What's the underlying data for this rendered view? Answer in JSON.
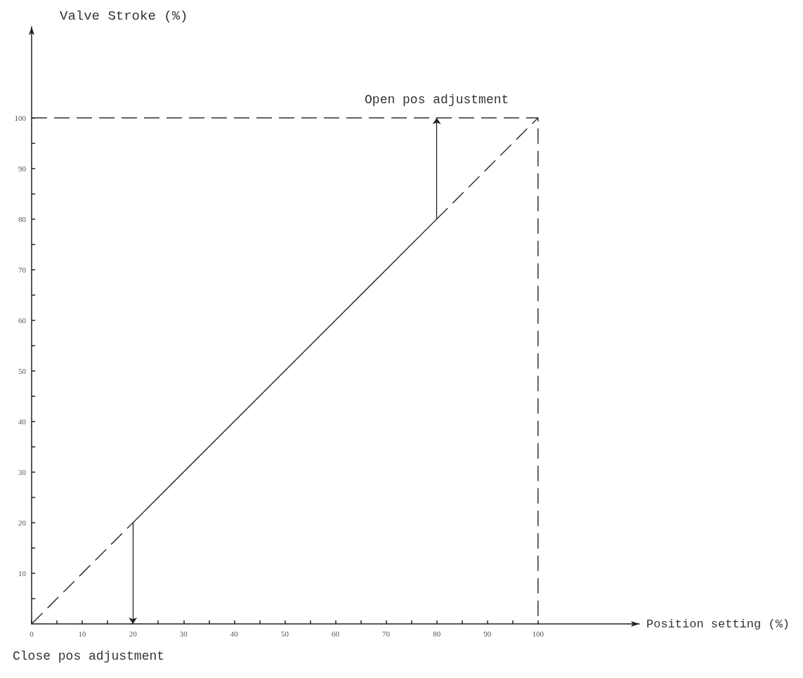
{
  "chart_data": {
    "type": "line",
    "xlabel": "Position setting (%)",
    "ylabel": "Valve Stroke (%)",
    "series": [
      {
        "x": [
          0,
          20
        ],
        "values": [
          0,
          20
        ],
        "color": "#333333",
        "line_style": "dashed"
      },
      {
        "x": [
          20,
          80
        ],
        "values": [
          20,
          80
        ],
        "color": "#333333",
        "line_style": "solid"
      },
      {
        "x": [
          80,
          100
        ],
        "values": [
          80,
          100
        ],
        "color": "#333333",
        "line_style": "dashed"
      },
      {
        "x": [
          0,
          100,
          100
        ],
        "values": [
          100,
          100,
          0
        ],
        "color": "#333333",
        "line_style": "dashed"
      }
    ],
    "annotations": [
      {
        "text": "Open pos adjustment",
        "x": 80,
        "y": 100
      },
      "Close pos adjustment"
    ],
    "xlim": [
      0,
      120
    ],
    "ylim": [
      0,
      118
    ],
    "xticks": [
      0,
      {
        "value": 5,
        "label": null
      },
      10,
      {
        "value": 15,
        "label": null
      },
      20,
      {
        "value": 25,
        "label": null
      },
      30,
      {
        "value": 35,
        "label": null
      },
      40,
      {
        "value": 45,
        "label": null
      },
      50,
      {
        "value": 55,
        "label": null
      },
      60,
      {
        "value": 65,
        "label": null
      },
      70,
      {
        "value": 75,
        "label": null
      },
      80,
      {
        "value": 85,
        "label": null
      },
      90,
      {
        "value": 95,
        "label": null
      },
      100
    ],
    "yticks": [
      {
        "value": 5,
        "label": null
      },
      10,
      {
        "value": 15,
        "label": null
      },
      20,
      {
        "value": 25,
        "label": null
      },
      30,
      {
        "value": 35,
        "label": null
      },
      40,
      {
        "value": 45,
        "label": null
      },
      50,
      {
        "value": 55,
        "label": null
      },
      60,
      {
        "value": 65,
        "label": null
      },
      70,
      {
        "value": 75,
        "label": null
      },
      80,
      {
        "value": 85,
        "label": null
      },
      90,
      {
        "value": 95,
        "label": null
      },
      100
    ],
    "grid": false,
    "marker": "none"
  }
}
